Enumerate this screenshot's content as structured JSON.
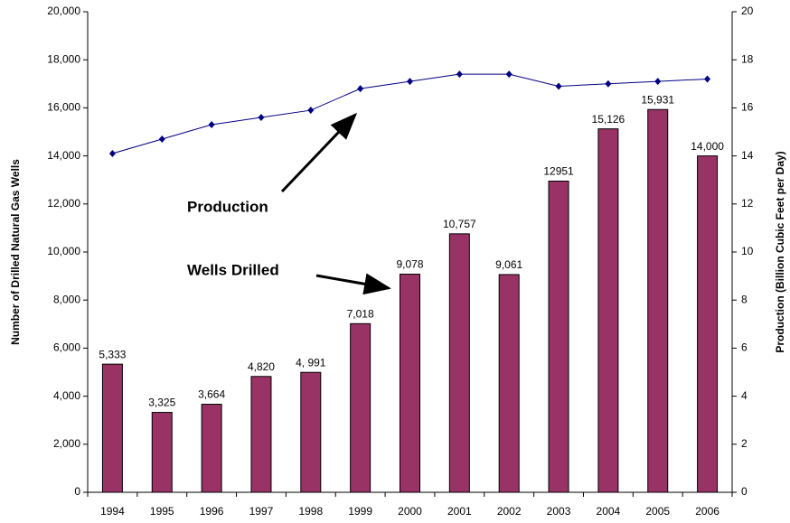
{
  "chart_data": {
    "type": "bar",
    "categories": [
      "1994",
      "1995",
      "1996",
      "1997",
      "1998",
      "1999",
      "2000",
      "2001",
      "2002",
      "2003",
      "2004",
      "2005",
      "2006"
    ],
    "series": [
      {
        "name": "Wells Drilled",
        "type": "bar",
        "color": "#993366",
        "values": [
          5333,
          3325,
          3664,
          4820,
          4991,
          7018,
          9078,
          10757,
          9061,
          12951,
          15126,
          15931,
          14000
        ],
        "value_labels": [
          "5,333",
          "3,325",
          "3,664",
          "4,820",
          "4, 991",
          "7,018",
          "9,078",
          "10,757",
          "9,061",
          "12951",
          "15,126",
          "15,931",
          "14,000"
        ]
      },
      {
        "name": "Production",
        "type": "line",
        "axis": "y2",
        "color": "#000080",
        "values": [
          14.1,
          14.7,
          15.3,
          15.6,
          15.9,
          16.8,
          17.1,
          17.4,
          17.4,
          16.9,
          17.0,
          17.1,
          17.2
        ]
      }
    ],
    "ylabel": "Number of Drilled Natural Gas Wells",
    "y2label": "Production (Billion Cubic Feet per Day)",
    "ylim": [
      0,
      20000
    ],
    "yticks": [
      0,
      {
        "value": 2000,
        "label": "2,000"
      },
      {
        "value": 4000,
        "label": "4,000"
      },
      {
        "value": 6000,
        "label": "6,000"
      },
      {
        "value": 8000,
        "label": "8,000"
      },
      {
        "value": 10000,
        "label": "10,000"
      },
      {
        "value": 12000,
        "label": "12,000"
      },
      {
        "value": 14000,
        "label": "14,000"
      },
      {
        "value": 16000,
        "label": "16,000"
      },
      {
        "value": 18000,
        "label": "18,000"
      },
      {
        "value": 20000,
        "label": "20,000"
      }
    ],
    "y2lim": [
      0,
      20
    ],
    "y2ticks": [
      0,
      2,
      4,
      6,
      8,
      10,
      12,
      14,
      16,
      18,
      20
    ],
    "annotations": [
      "Production",
      "Wells Drilled"
    ]
  }
}
